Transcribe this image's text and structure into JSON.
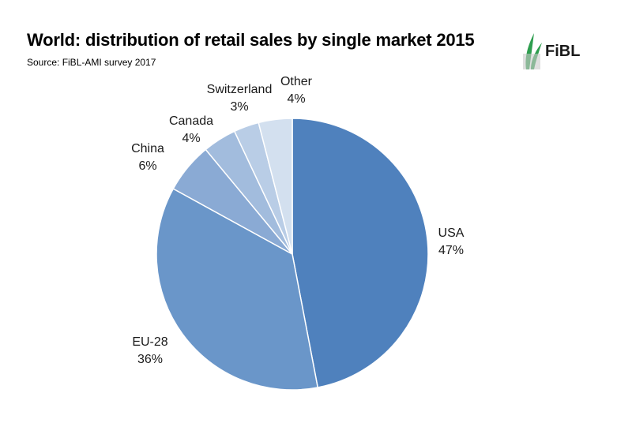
{
  "header": {
    "title": "World: distribution of retail sales by single market 2015",
    "source": "Source: FiBL-AMI survey 2017"
  },
  "logo": {
    "text": "FiBL",
    "leaf_color": "#2e9e4f"
  },
  "chart_data": {
    "type": "pie",
    "title": "World: distribution of retail sales by single market 2015",
    "start": "12 o'clock",
    "direction": "clockwise",
    "slices": [
      {
        "label": "USA",
        "value": 47,
        "value_label": "47%",
        "color": "#4f81bd"
      },
      {
        "label": "EU-28",
        "value": 36,
        "value_label": "36%",
        "color": "#6a96c9"
      },
      {
        "label": "China",
        "value": 6,
        "value_label": "6%",
        "color": "#8aaad4"
      },
      {
        "label": "Canada",
        "value": 4,
        "value_label": "4%",
        "color": "#a2bcdd"
      },
      {
        "label": "Switzerland",
        "value": 3,
        "value_label": "3%",
        "color": "#b9cde6"
      },
      {
        "label": "Other",
        "value": 4,
        "value_label": "4%",
        "color": "#d3e0ef"
      }
    ]
  }
}
